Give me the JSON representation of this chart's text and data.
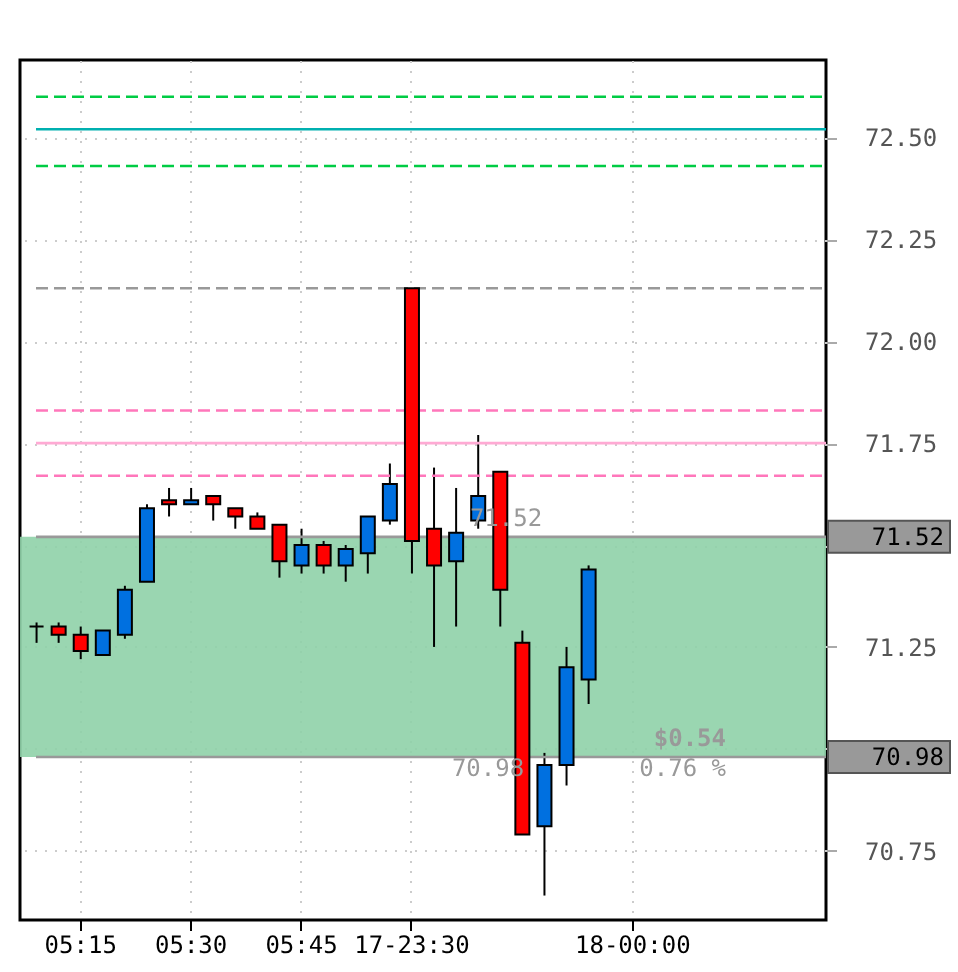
{
  "chart_data": {
    "type": "candlestick",
    "categories": [
      null,
      null,
      "05:15",
      null,
      null,
      null,
      null,
      "05:30",
      null,
      null,
      null,
      null,
      "05:45",
      null,
      null,
      null,
      null,
      "17-23:30",
      null,
      null,
      null,
      null,
      null,
      null,
      null,
      null,
      null,
      "18-00:00",
      null,
      null,
      null,
      null,
      null,
      null,
      null,
      null
    ],
    "ohlc": [
      [
        71.3,
        71.31,
        71.26,
        71.3
      ],
      [
        71.3,
        71.31,
        71.26,
        71.28
      ],
      [
        71.28,
        71.3,
        71.22,
        71.24
      ],
      [
        71.23,
        71.29,
        71.23,
        71.29
      ],
      [
        71.28,
        71.4,
        71.27,
        71.39
      ],
      [
        71.41,
        71.6,
        71.41,
        71.59
      ],
      [
        71.61,
        71.64,
        71.57,
        71.6
      ],
      [
        71.6,
        71.64,
        71.6,
        71.61
      ],
      [
        71.62,
        71.62,
        71.56,
        71.6
      ],
      [
        71.59,
        71.59,
        71.54,
        71.57
      ],
      [
        71.57,
        71.58,
        71.54,
        71.54
      ],
      [
        71.55,
        71.55,
        71.42,
        71.46
      ],
      [
        71.45,
        71.54,
        71.43,
        71.5
      ],
      [
        71.5,
        71.51,
        71.43,
        71.45
      ],
      [
        71.45,
        71.5,
        71.41,
        71.49
      ],
      [
        71.48,
        71.57,
        71.43,
        71.57
      ],
      [
        71.56,
        71.7,
        71.55,
        71.65
      ],
      [
        72.13,
        72.13,
        71.43,
        71.51
      ],
      [
        71.54,
        71.69,
        71.25,
        71.45
      ],
      [
        71.46,
        71.64,
        71.3,
        71.53
      ],
      [
        71.56,
        71.77,
        71.54,
        71.62
      ],
      [
        71.68,
        71.68,
        71.3,
        71.39
      ],
      [
        71.26,
        71.29,
        70.79,
        70.79
      ],
      [
        70.81,
        70.99,
        70.64,
        70.96
      ],
      [
        70.96,
        71.25,
        70.91,
        71.2
      ],
      [
        71.17,
        71.45,
        71.11,
        71.44
      ],
      null,
      null,
      null,
      null,
      null,
      null,
      null,
      null,
      null,
      null
    ],
    "colors": [
      "#000000",
      "#ff0000",
      "#ff0000",
      "#0070e0",
      "#0070e0",
      "#0070e0",
      "#ff0000",
      "#0070e0",
      "#ff0000",
      "#ff0000",
      "#ff0000",
      "#ff0000",
      "#0070e0",
      "#ff0000",
      "#0070e0",
      "#0070e0",
      "#0070e0",
      "#ff0000",
      "#ff0000",
      "#0070e0",
      "#0070e0",
      "#ff0000",
      "#ff0000",
      "#0070e0",
      "#0070e0",
      "#0070e0",
      null,
      null,
      null,
      null,
      null,
      null,
      null,
      null,
      null,
      null
    ],
    "ylim": [
      70.58,
      72.69
    ],
    "yticks": [
      {
        "value": 70.75,
        "label": "70.75"
      },
      {
        "value": 71.0,
        "label": null
      },
      {
        "value": 71.25,
        "label": "71.25"
      },
      {
        "value": 71.5,
        "label": null
      },
      {
        "value": 71.75,
        "label": "71.75"
      },
      {
        "value": 72.0,
        "label": "72.00"
      },
      {
        "value": 72.25,
        "label": "72.25"
      },
      {
        "value": 72.5,
        "label": "72.50"
      }
    ],
    "grid": true,
    "bands": [
      {
        "axis": "y",
        "from": 70.98,
        "to": 71.52,
        "color": "#8fd1a8"
      }
    ],
    "ref_lines": [
      {
        "axis": "y",
        "value": 72.6,
        "color": "#00cc44",
        "line_style": "dashed"
      },
      {
        "axis": "y",
        "value": 72.52,
        "color": "#00b0b0",
        "line_style": "solid"
      },
      {
        "axis": "y",
        "value": 72.43,
        "color": "#00cc44",
        "line_style": "dashed"
      },
      {
        "axis": "y",
        "value": 72.13,
        "color": "#999999",
        "line_style": "dashed"
      },
      {
        "axis": "y",
        "value": 71.83,
        "color": "#ff77bb",
        "line_style": "dashed"
      },
      {
        "axis": "y",
        "value": 71.75,
        "color": "#ffaad4",
        "line_style": "solid"
      },
      {
        "axis": "y",
        "value": 71.67,
        "color": "#ff77bb",
        "line_style": "dashed"
      },
      {
        "axis": "y",
        "value": 71.52,
        "label": "71.52",
        "color": "#999999",
        "line_style": "solid"
      },
      {
        "axis": "y",
        "value": 70.98,
        "label": "70.98",
        "color": "#999999",
        "line_style": "solid"
      }
    ],
    "annotations": [
      "71.52",
      "70.98",
      "$0.54",
      "0.76 %"
    ]
  }
}
